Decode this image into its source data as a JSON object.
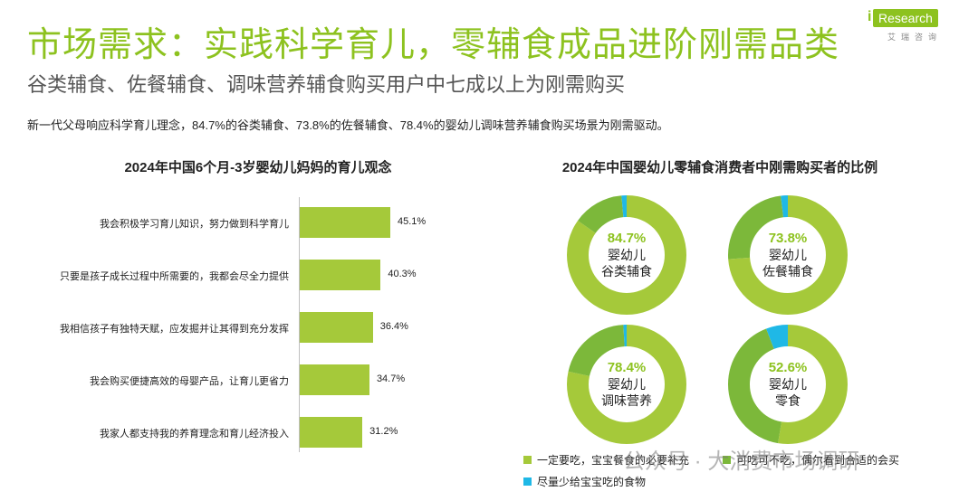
{
  "header": {
    "title": "市场需求：实践科学育儿，零辅食成品进阶刚需品类",
    "subtitle": "谷类辅食、佐餐辅食、调味营养辅食购买用户中七成以上为刚需购买",
    "description": "新一代父母响应科学育儿理念，84.7%的谷类辅食、73.8%的佐餐辅食、78.4%的婴幼儿调味营养辅食购买场景为刚需驱动。"
  },
  "logo": {
    "brand": "Research",
    "i": "i",
    "sub": "艾瑞咨询"
  },
  "colors": {
    "accent": "#8dc21f",
    "bar": "#a5c93a",
    "dark_green": "#7cb83a",
    "cyan": "#1fb8e6"
  },
  "chart_data": [
    {
      "type": "bar",
      "orientation": "horizontal",
      "title": "2024年中国6个月-3岁婴幼儿妈妈的育儿观念",
      "categories": [
        "我会积极学习育儿知识，努力做到科学育儿",
        "只要是孩子成长过程中所需要的，我都会尽全力提供",
        "我相信孩子有独特天赋，应发掘并让其得到充分发挥",
        "我会购买便捷高效的母婴产品，让育儿更省力",
        "我家人都支持我的养育理念和育儿经济投入"
      ],
      "values": [
        45.1,
        40.3,
        36.4,
        34.7,
        31.2
      ],
      "value_labels": [
        "45.1%",
        "40.3%",
        "36.4%",
        "34.7%",
        "31.2%"
      ],
      "unit": "%"
    },
    {
      "type": "pie",
      "variant": "donut",
      "title": "2024年中国婴幼儿零辅食消费者中刚需购买者的比例",
      "legend": [
        {
          "name": "一定要吃，宝宝餐食的必要补充",
          "color": "#a5c93a"
        },
        {
          "name": "可吃可不吃，偶尔看到合适的会买",
          "color": "#7cb83a"
        },
        {
          "name": "尽量少给宝宝吃的食物",
          "color": "#1fb8e6"
        }
      ],
      "donuts": [
        {
          "label_line1": "婴幼儿",
          "label_line2": "谷类辅食",
          "pct_label": "84.7%",
          "values": [
            84.7,
            13.8,
            1.5
          ]
        },
        {
          "label_line1": "婴幼儿",
          "label_line2": "佐餐辅食",
          "pct_label": "73.8%",
          "values": [
            73.8,
            24.2,
            2.0
          ]
        },
        {
          "label_line1": "婴幼儿",
          "label_line2": "调味营养",
          "pct_label": "78.4%",
          "values": [
            78.4,
            20.6,
            1.0
          ]
        },
        {
          "label_line1": "婴幼儿",
          "label_line2": "零食",
          "pct_label": "52.6%",
          "values": [
            52.6,
            41.4,
            6.0
          ]
        }
      ]
    }
  ],
  "watermark": "公众号 · 大消费市场调研"
}
